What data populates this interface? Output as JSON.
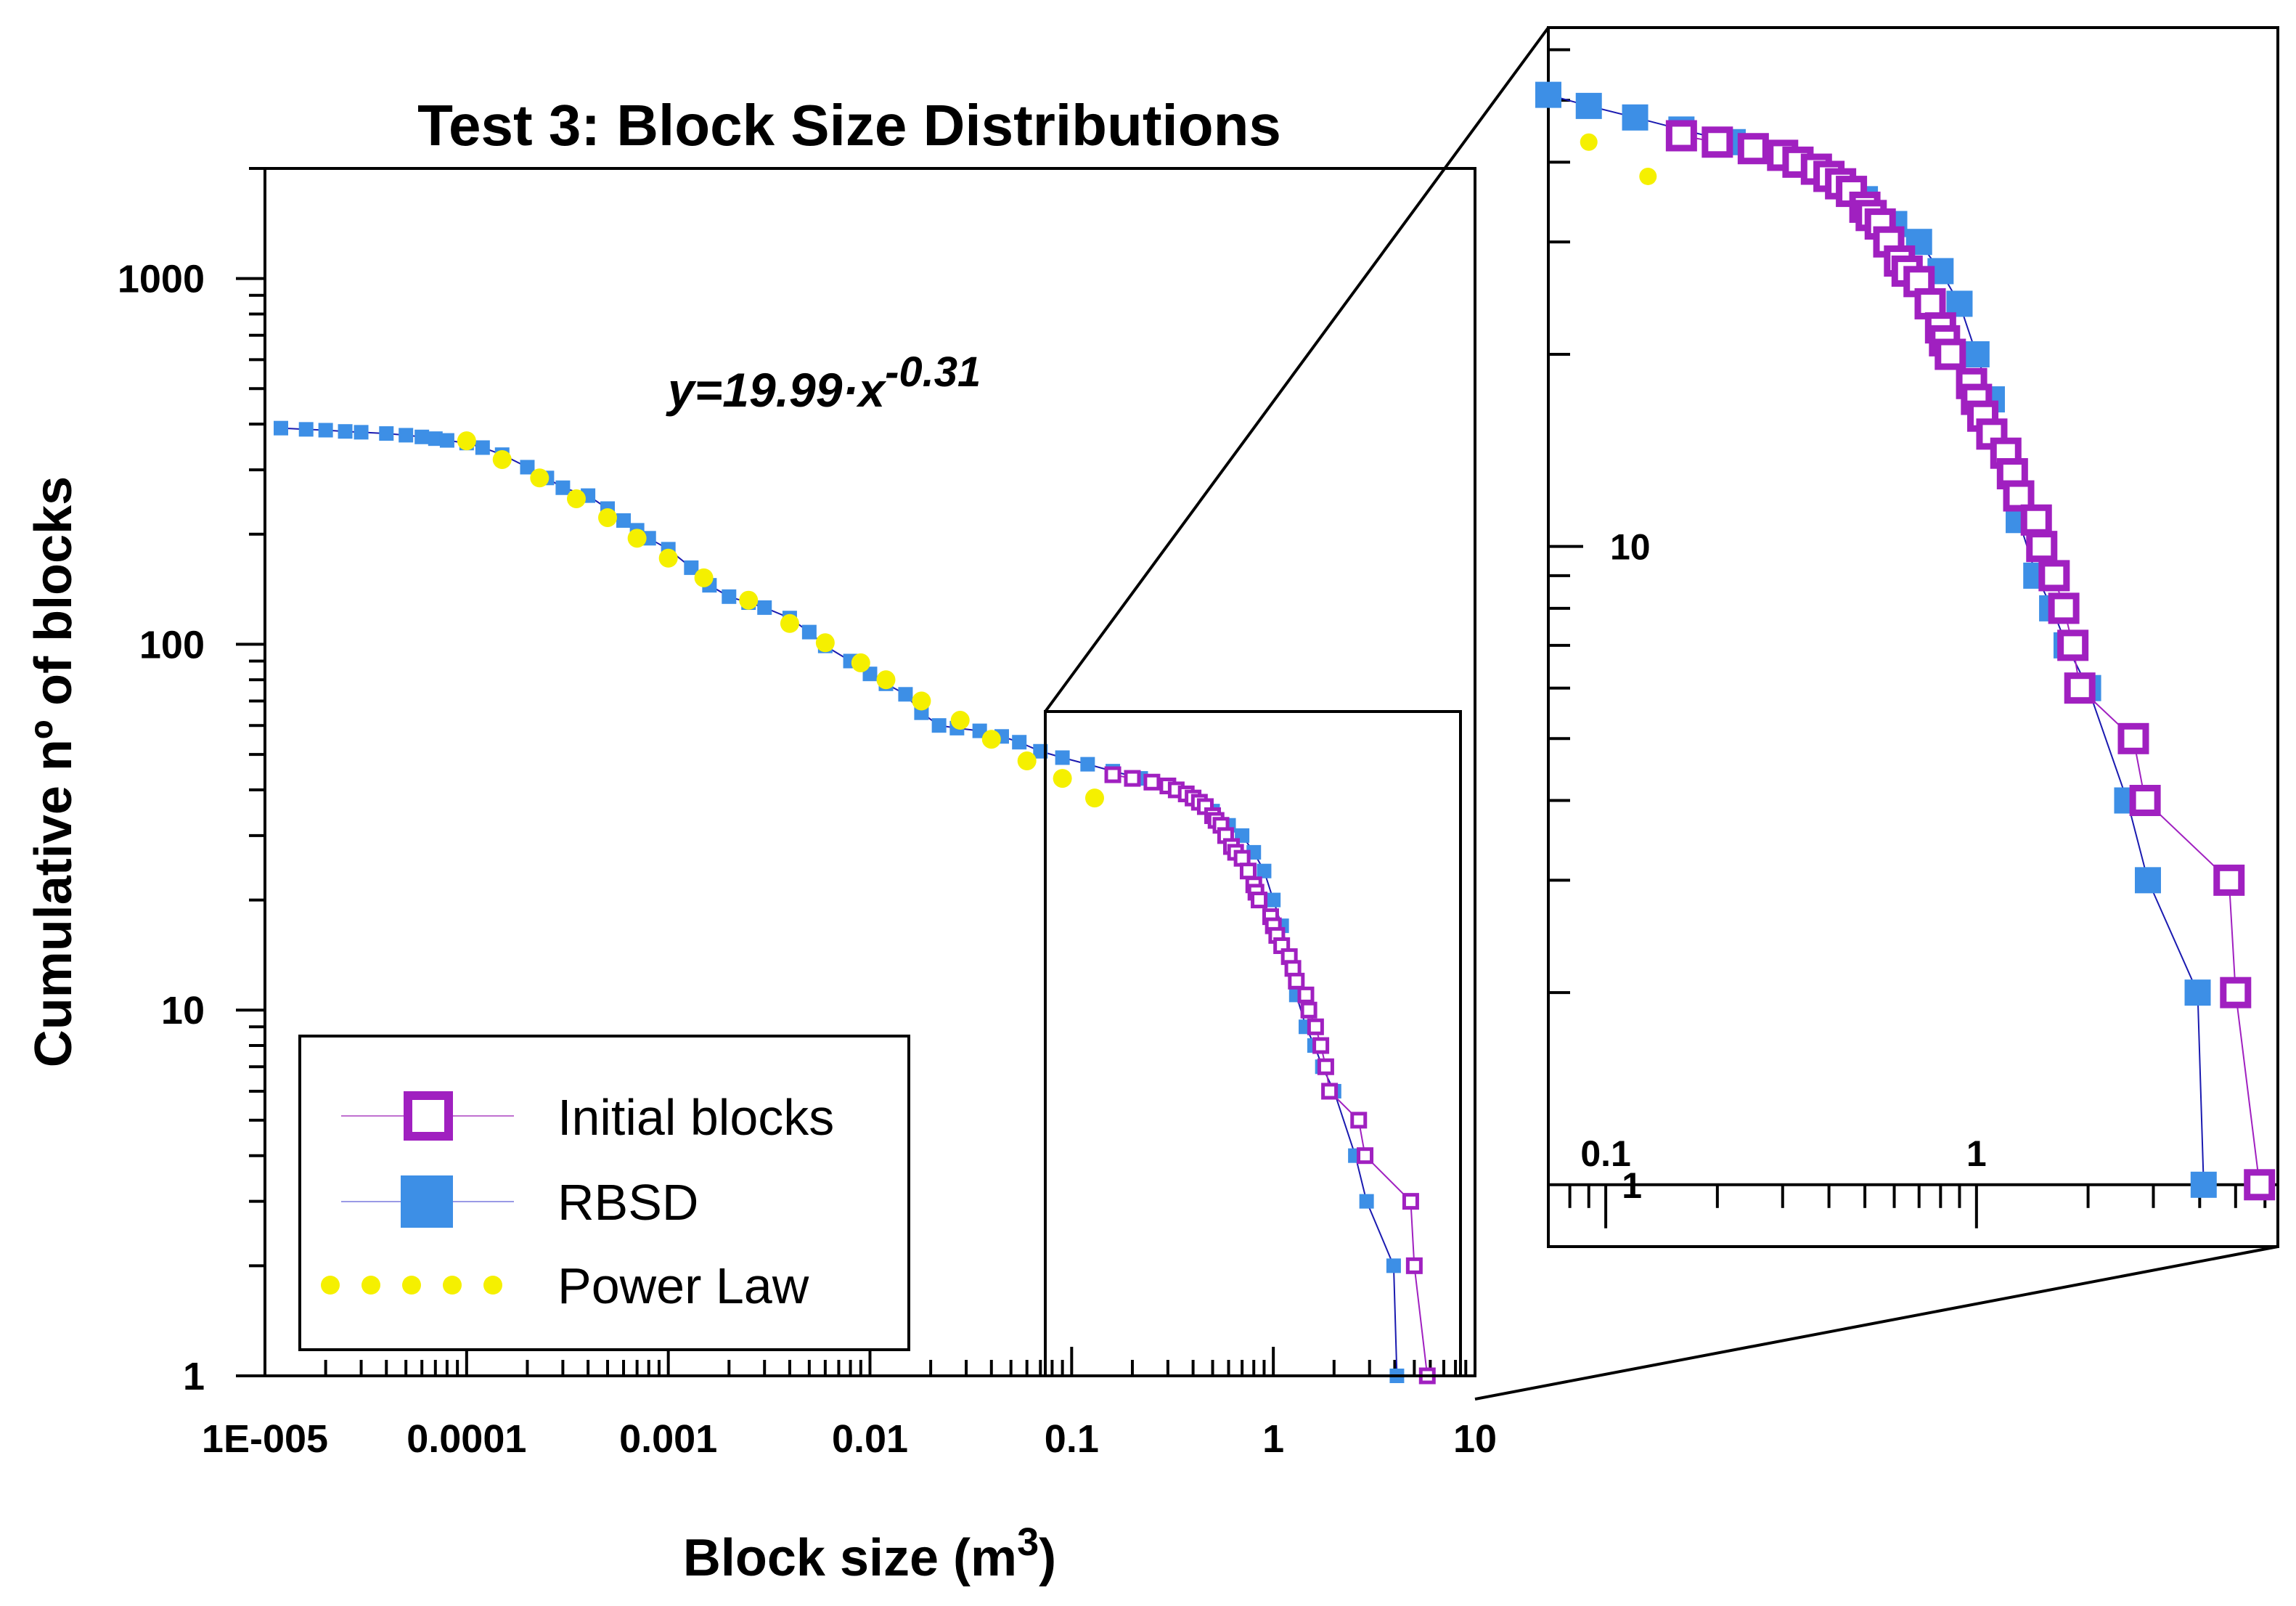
{
  "chart_data": {
    "type": "scatter",
    "title": "Test 3: Block Size Distributions",
    "xlabel": "Block size (m",
    "xlabel_sup": "3",
    "xlabel_end": ")",
    "ylabel": "Cumulative nº of blocks",
    "xscale": "log",
    "yscale": "log",
    "xlim": [
      1e-05,
      10
    ],
    "ylim": [
      1,
      2000
    ],
    "x_tick_labels": [
      "1E-005",
      "0.0001",
      "0.001",
      "0.01",
      "0.1",
      "1",
      "10"
    ],
    "x_tick_values": [
      1e-05,
      0.0001,
      0.001,
      0.01,
      0.1,
      1,
      10
    ],
    "y_tick_labels": [
      "1",
      "10",
      "100",
      "1000"
    ],
    "y_tick_values": [
      1,
      10,
      100,
      1000
    ],
    "annotation": {
      "base": "y=19.99·x",
      "exponent": "-0.31"
    },
    "legend": {
      "position": "bottom-left",
      "entries": [
        "Initial blocks",
        "RBSD",
        "Power Law"
      ]
    },
    "colors": {
      "initial": "#a020c0",
      "rbsd": "#3d8fe6",
      "rbsd_line": "#1a1ab0",
      "power": "#f5f000"
    },
    "series": [
      {
        "name": "Initial blocks",
        "marker": "open-square",
        "points": [
          [
            0.16,
            44
          ],
          [
            0.2,
            43
          ],
          [
            0.25,
            42
          ],
          [
            0.3,
            41
          ],
          [
            0.33,
            40
          ],
          [
            0.37,
            39
          ],
          [
            0.4,
            38
          ],
          [
            0.43,
            37
          ],
          [
            0.46,
            36
          ],
          [
            0.5,
            34
          ],
          [
            0.52,
            33
          ],
          [
            0.55,
            32
          ],
          [
            0.58,
            30
          ],
          [
            0.62,
            28
          ],
          [
            0.65,
            27
          ],
          [
            0.7,
            26
          ],
          [
            0.75,
            24
          ],
          [
            0.8,
            22
          ],
          [
            0.82,
            21
          ],
          [
            0.85,
            20
          ],
          [
            0.97,
            18
          ],
          [
            1.0,
            17
          ],
          [
            1.04,
            16
          ],
          [
            1.1,
            15
          ],
          [
            1.2,
            14
          ],
          [
            1.25,
            13
          ],
          [
            1.3,
            12
          ],
          [
            1.45,
            11
          ],
          [
            1.5,
            10
          ],
          [
            1.62,
            9
          ],
          [
            1.72,
            8
          ],
          [
            1.82,
            7
          ],
          [
            1.9,
            6
          ],
          [
            2.65,
            5
          ],
          [
            2.85,
            4
          ],
          [
            4.8,
            3
          ],
          [
            5.0,
            2
          ],
          [
            5.8,
            1
          ]
        ]
      },
      {
        "name": "RBSD",
        "marker": "filled-square",
        "points": [
          [
            1.2e-05,
            390
          ],
          [
            1.6e-05,
            387
          ],
          [
            2e-05,
            385
          ],
          [
            2.5e-05,
            382
          ],
          [
            3e-05,
            380
          ],
          [
            4e-05,
            377
          ],
          [
            5e-05,
            373
          ],
          [
            6e-05,
            369
          ],
          [
            7e-05,
            365
          ],
          [
            8e-05,
            361
          ],
          [
            0.0001,
            355
          ],
          [
            0.00012,
            345
          ],
          [
            0.00015,
            330
          ],
          [
            0.0002,
            305
          ],
          [
            0.00025,
            285
          ],
          [
            0.0003,
            268
          ],
          [
            0.0004,
            255
          ],
          [
            0.0005,
            235
          ],
          [
            0.0006,
            218
          ],
          [
            0.0007,
            205
          ],
          [
            0.0008,
            195
          ],
          [
            0.001,
            182
          ],
          [
            0.0013,
            162
          ],
          [
            0.0016,
            145
          ],
          [
            0.002,
            135
          ],
          [
            0.0025,
            130
          ],
          [
            0.003,
            126
          ],
          [
            0.004,
            118
          ],
          [
            0.005,
            108
          ],
          [
            0.006,
            99
          ],
          [
            0.008,
            90
          ],
          [
            0.01,
            83
          ],
          [
            0.012,
            78
          ],
          [
            0.015,
            73
          ],
          [
            0.018,
            65
          ],
          [
            0.022,
            60
          ],
          [
            0.027,
            59
          ],
          [
            0.035,
            58
          ],
          [
            0.045,
            56
          ],
          [
            0.055,
            54
          ],
          [
            0.07,
            51
          ],
          [
            0.09,
            49
          ],
          [
            0.12,
            47
          ],
          [
            0.16,
            45
          ],
          [
            0.22,
            43
          ],
          [
            0.3,
            41
          ],
          [
            0.4,
            38
          ],
          [
            0.5,
            35
          ],
          [
            0.6,
            32
          ],
          [
            0.7,
            30
          ],
          [
            0.8,
            27
          ],
          [
            0.9,
            24
          ],
          [
            1.0,
            20
          ],
          [
            1.1,
            17
          ],
          [
            1.2,
            14
          ],
          [
            1.3,
            11
          ],
          [
            1.45,
            9
          ],
          [
            1.6,
            8
          ],
          [
            1.75,
            7
          ],
          [
            2.0,
            6
          ],
          [
            2.55,
            4
          ],
          [
            2.9,
            3
          ],
          [
            3.95,
            2
          ],
          [
            4.1,
            1
          ]
        ]
      },
      {
        "name": "Power Law",
        "marker": "dot",
        "points": [
          [
            0.0001,
            360
          ],
          [
            0.00015,
            320
          ],
          [
            0.00023,
            285
          ],
          [
            0.00035,
            250
          ],
          [
            0.0005,
            222
          ],
          [
            0.0007,
            195
          ],
          [
            0.001,
            172
          ],
          [
            0.0015,
            152
          ],
          [
            0.0025,
            132
          ],
          [
            0.004,
            114
          ],
          [
            0.006,
            101
          ],
          [
            0.009,
            89
          ],
          [
            0.012,
            80
          ],
          [
            0.018,
            70
          ],
          [
            0.028,
            62
          ],
          [
            0.04,
            55
          ],
          [
            0.06,
            48
          ],
          [
            0.09,
            43
          ],
          [
            0.13,
            38
          ]
        ]
      }
    ],
    "inset": {
      "xlim": [
        0.07,
        6.5
      ],
      "ylim": [
        0.8,
        65
      ],
      "x_tick_labels": [
        "0.1",
        "1"
      ],
      "x_tick_values": [
        0.1,
        1
      ],
      "x_extra_label": "1",
      "y_tick_labels": [
        "10"
      ],
      "y_tick_values": [
        10
      ]
    }
  }
}
